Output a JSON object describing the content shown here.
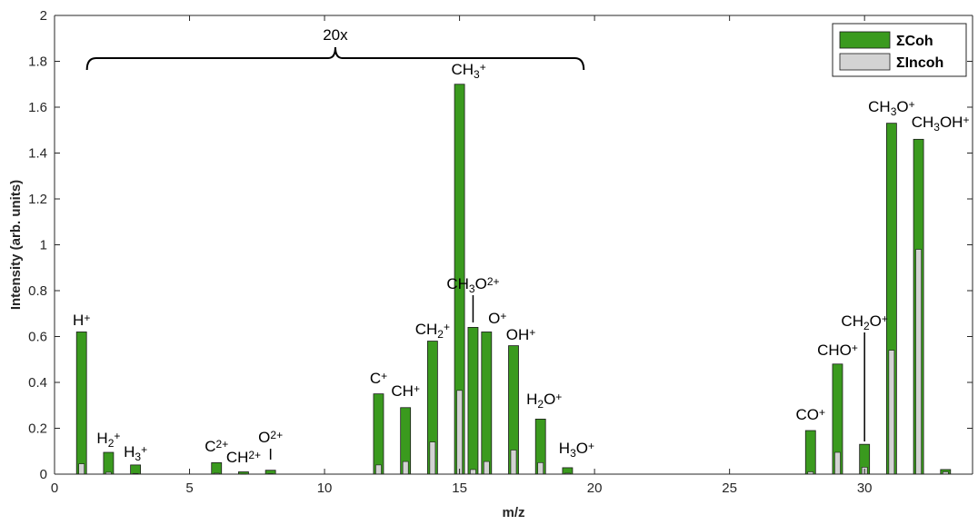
{
  "chart_data": {
    "type": "bar",
    "xlabel": "m/z",
    "ylabel": "Intensity (arb. units)",
    "xlim": [
      0,
      34
    ],
    "ylim": [
      0,
      2
    ],
    "xticks": [
      "0",
      "5",
      "10",
      "15",
      "20",
      "25",
      "30"
    ],
    "yticks": [
      "0",
      "0.2",
      "0.4",
      "0.6",
      "0.8",
      "1",
      "1.2",
      "1.4",
      "1.6",
      "1.8",
      "2"
    ],
    "grid": false,
    "legend_position": "top-right",
    "colors": {
      "coh": "#3a9a1e",
      "incoh": "#d3d3d3"
    },
    "series": [
      {
        "name": "ΣCoh",
        "x": [
          1,
          2,
          3,
          6,
          7,
          8,
          12,
          13,
          14,
          15,
          15.5,
          16,
          17,
          18,
          19,
          28,
          29,
          30,
          31,
          32,
          33
        ],
        "values": [
          0.62,
          0.095,
          0.04,
          0.05,
          0.01,
          0.017,
          0.35,
          0.29,
          0.58,
          1.7,
          0.64,
          0.62,
          0.56,
          0.24,
          0.028,
          0.19,
          0.48,
          0.13,
          1.53,
          1.46,
          0.02
        ]
      },
      {
        "name": "ΣIncoh",
        "x": [
          1,
          2,
          3,
          6,
          7,
          8,
          12,
          13,
          14,
          15,
          15.5,
          16,
          17,
          18,
          19,
          28,
          29,
          30,
          31,
          32,
          33
        ],
        "values": [
          0.045,
          0.008,
          0.003,
          0.004,
          0.001,
          0.002,
          0.04,
          0.055,
          0.14,
          0.365,
          0.02,
          0.055,
          0.105,
          0.05,
          0.004,
          0.01,
          0.095,
          0.03,
          0.54,
          0.98,
          0.01
        ]
      }
    ],
    "annotations": [
      {
        "base": "H",
        "sub": "",
        "sup": "+",
        "m": 1
      },
      {
        "base": "H",
        "sub": "2",
        "sup": "+",
        "m": 2
      },
      {
        "base": "H",
        "sub": "3",
        "sup": "+",
        "m": 3
      },
      {
        "base": "C",
        "sub": "",
        "sup": "2+",
        "m": 6
      },
      {
        "base": "CH",
        "sub": "",
        "sup": "2+",
        "m": 7
      },
      {
        "base": "O",
        "sub": "",
        "sup": "2+",
        "m": 8
      },
      {
        "base": "C",
        "sub": "",
        "sup": "+",
        "m": 12
      },
      {
        "base": "CH",
        "sub": "",
        "sup": "+",
        "m": 13
      },
      {
        "base": "CH",
        "sub": "2",
        "sup": "+",
        "m": 14
      },
      {
        "base": "CH",
        "sub": "3",
        "sup": "+",
        "m": 15
      },
      {
        "base": "CH",
        "sub": "3",
        "sup": "",
        "tail": "O",
        "sup2": "2+",
        "m": 15.5
      },
      {
        "base": "O",
        "sub": "",
        "sup": "+",
        "m": 16
      },
      {
        "base": "OH",
        "sub": "",
        "sup": "+",
        "m": 17
      },
      {
        "base": "H",
        "sub": "2",
        "sup": "",
        "tail": "O",
        "sup2": "+",
        "m": 18
      },
      {
        "base": "H",
        "sub": "3",
        "sup": "",
        "tail": "O",
        "sup2": "+",
        "m": 19
      },
      {
        "base": "CO",
        "sub": "",
        "sup": "+",
        "m": 28
      },
      {
        "base": "CHO",
        "sub": "",
        "sup": "+",
        "m": 29
      },
      {
        "base": "CH",
        "sub": "2",
        "sup": "",
        "tail": "O",
        "sup2": "+",
        "m": 30
      },
      {
        "base": "CH",
        "sub": "3",
        "sup": "",
        "tail": "O",
        "sup2": "+",
        "m": 31
      },
      {
        "base": "CH",
        "sub": "3",
        "sup": "",
        "tail": "OH",
        "sup2": "+",
        "m": 32
      }
    ],
    "bracket": {
      "label": "20x",
      "x_start": 1.2,
      "x_end": 19.6
    }
  }
}
